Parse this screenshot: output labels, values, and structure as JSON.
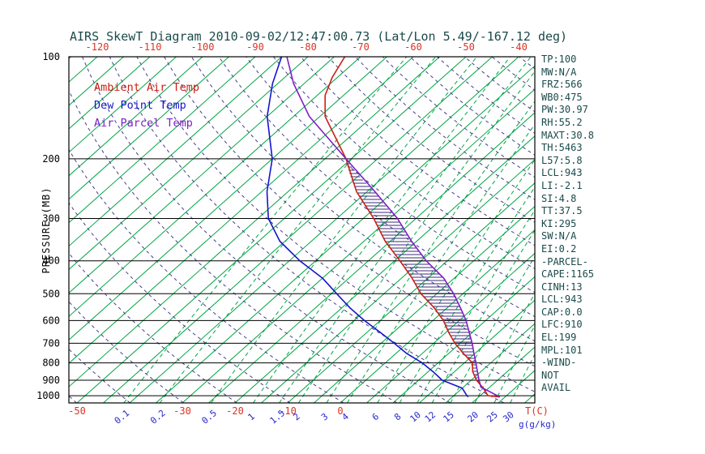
{
  "title": "AIRS SkewT Diagram 2010-09-02/12:47:00.73 (Lat/Lon 5.49/-167.12 deg)",
  "colors": {
    "text": "#1b4a4a",
    "axis": "#000000",
    "isotherm": "#00a545",
    "mixing_ratio": "#00a545",
    "dry_adiabat": "#483d8b",
    "ambient": "#cc2015",
    "dewpoint": "#1515cc",
    "parcel": "#7d1fc4",
    "temp_tick": "#d93425",
    "mixing_tick": "#2626cc",
    "hatch": "#3d2b7d"
  },
  "legend": [
    {
      "label": "Ambient Air Temp",
      "color_key": "ambient"
    },
    {
      "label": "Dew Point Temp",
      "color_key": "dewpoint"
    },
    {
      "label": "Air Parcel Temp",
      "color_key": "parcel"
    }
  ],
  "axes": {
    "pressure_axis_title": "PRESSURE (MB)",
    "pressure_ticks": [
      100,
      200,
      300,
      400,
      500,
      600,
      700,
      800,
      900,
      1000
    ],
    "top_temp_ticks": [
      -120,
      -110,
      -100,
      -90,
      -80,
      -70,
      -60,
      -50,
      -40
    ],
    "bottom_temp_ticks": [
      -50,
      -30,
      -20,
      -10,
      0
    ],
    "temp_unit_label": "T(C)",
    "mixing_ratio_ticks": [
      0.1,
      0.2,
      0.5,
      1,
      1.5,
      2,
      3,
      4,
      6,
      8,
      10,
      12,
      15,
      20,
      25,
      30
    ],
    "mixing_unit_label": "g(g/kg)"
  },
  "chart_data": {
    "type": "line",
    "title": "AIRS SkewT Diagram 2010-09-02/12:47:00.73 (Lat/Lon 5.49/-167.12 deg)",
    "x_axis": {
      "label": "T(C)",
      "skewed": true,
      "bottom_temp_range_c": [
        -51.5,
        36.9
      ]
    },
    "y_axis": {
      "label": "PRESSURE (MB)",
      "scale": "log",
      "range_mb": [
        100,
        1050
      ],
      "inverted": true
    },
    "grid": {
      "isotherm_step_c": 5,
      "dry_adiabat_theta_k": [
        220,
        460,
        10
      ],
      "mixing_ratio_gkg": [
        0.1,
        0.2,
        0.5,
        1,
        1.5,
        2,
        3,
        4,
        6,
        8,
        10,
        12,
        15,
        20,
        25,
        30
      ],
      "grid_on": true
    },
    "legend_position": "top-left-inside",
    "series": [
      {
        "name": "Ambient Air Temp",
        "color_key": "ambient",
        "data_name": "ambient-temp-curve",
        "points_p_t": [
          [
            1008,
            29
          ],
          [
            1000,
            26.5
          ],
          [
            950,
            24
          ],
          [
            900,
            21
          ],
          [
            850,
            18.5
          ],
          [
            800,
            16.5
          ],
          [
            750,
            12.8
          ],
          [
            700,
            9
          ],
          [
            650,
            5.5
          ],
          [
            600,
            2
          ],
          [
            550,
            -2.5
          ],
          [
            500,
            -8
          ],
          [
            450,
            -13
          ],
          [
            400,
            -19
          ],
          [
            350,
            -26
          ],
          [
            300,
            -33
          ],
          [
            250,
            -42
          ],
          [
            200,
            -51
          ],
          [
            150,
            -64
          ],
          [
            130,
            -68.5
          ],
          [
            115,
            -71
          ],
          [
            100,
            -73
          ]
        ]
      },
      {
        "name": "Dew Point Temp",
        "color_key": "dewpoint",
        "data_name": "dewpoint-curve",
        "points_p_t": [
          [
            1008,
            23
          ],
          [
            1000,
            22.5
          ],
          [
            950,
            20
          ],
          [
            900,
            14.5
          ],
          [
            850,
            11
          ],
          [
            800,
            7
          ],
          [
            750,
            2
          ],
          [
            700,
            -2.5
          ],
          [
            650,
            -7.5
          ],
          [
            600,
            -13
          ],
          [
            550,
            -18.5
          ],
          [
            500,
            -24
          ],
          [
            450,
            -30
          ],
          [
            400,
            -38
          ],
          [
            350,
            -46
          ],
          [
            300,
            -53
          ],
          [
            250,
            -59
          ],
          [
            200,
            -65
          ],
          [
            150,
            -75
          ],
          [
            120,
            -81
          ],
          [
            100,
            -85
          ]
        ]
      },
      {
        "name": "Air Parcel Temp",
        "color_key": "parcel",
        "data_name": "parcel-temp-curve",
        "points_p_t": [
          [
            1008,
            29
          ],
          [
            943,
            23.3
          ],
          [
            900,
            21.5
          ],
          [
            850,
            19.4
          ],
          [
            800,
            17.2
          ],
          [
            750,
            14.8
          ],
          [
            700,
            12.3
          ],
          [
            650,
            9.4
          ],
          [
            600,
            6.3
          ],
          [
            550,
            2.5
          ],
          [
            500,
            -1.8
          ],
          [
            450,
            -7
          ],
          [
            400,
            -14
          ],
          [
            350,
            -21
          ],
          [
            300,
            -28.5
          ],
          [
            250,
            -38.5
          ],
          [
            200,
            -51
          ],
          [
            150,
            -67
          ],
          [
            120,
            -77
          ],
          [
            100,
            -84
          ]
        ]
      }
    ],
    "cape_hatch": {
      "between": [
        "Air Parcel Temp",
        "Ambient Air Temp"
      ],
      "pressure_range": [
        910,
        199
      ],
      "style": "horizontal-lines"
    }
  },
  "stats_panel": {
    "lines": [
      "TP:100",
      "MW:N/A",
      "FRZ:566",
      "WB0:475",
      "PW:30.97",
      "RH:55.2",
      "MAXT:30.8",
      "TH:5463",
      "L57:5.8",
      "LCL:943",
      "LI:-2.1",
      "SI:4.8",
      "TT:37.5",
      "KI:295",
      "SW:N/A",
      "EI:0.2",
      "-PARCEL-",
      "CAPE:1165",
      "CINH:13",
      "LCL:943",
      "CAP:0.0",
      "LFC:910",
      "EL:199",
      "MPL:101",
      "-WIND-",
      "NOT",
      "AVAIL"
    ]
  }
}
